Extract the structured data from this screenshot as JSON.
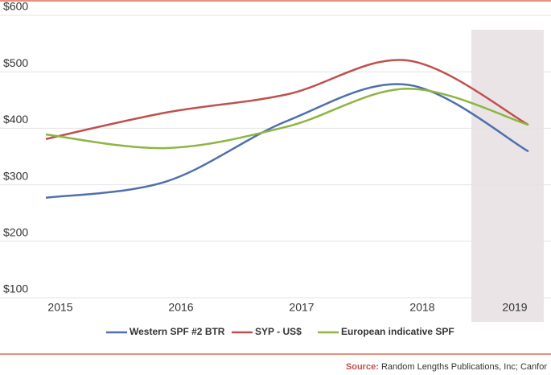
{
  "chart_data": {
    "type": "line",
    "x": [
      2015,
      2016,
      2017,
      2018,
      2019
    ],
    "xlim": [
      2015,
      2019
    ],
    "xticks": [
      2015,
      2016,
      2017,
      2018,
      2019
    ],
    "ylim": [
      100,
      600
    ],
    "yticks": [
      {
        "value": 100,
        "label": "$100"
      },
      {
        "value": 200,
        "label": "$200"
      },
      {
        "value": 300,
        "label": "$300"
      },
      {
        "value": 400,
        "label": "$400"
      },
      {
        "value": 500,
        "label": "$500"
      },
      {
        "value": 600,
        "label": "$600"
      }
    ],
    "grid": true,
    "series": [
      {
        "name": "Western SPF #2 BTR",
        "color": "#4f6fae",
        "values": [
          277,
          306,
          413,
          477,
          359
        ]
      },
      {
        "name": "SYP - US$",
        "color": "#c0504d",
        "values": [
          381,
          428,
          460,
          520,
          406
        ]
      },
      {
        "name": "European indicative SPF",
        "color": "#8db542",
        "values": [
          389,
          365,
          403,
          470,
          406
        ]
      }
    ],
    "source_label": "Source:",
    "source": "Random Lengths Publications, Inc; Canfor"
  }
}
